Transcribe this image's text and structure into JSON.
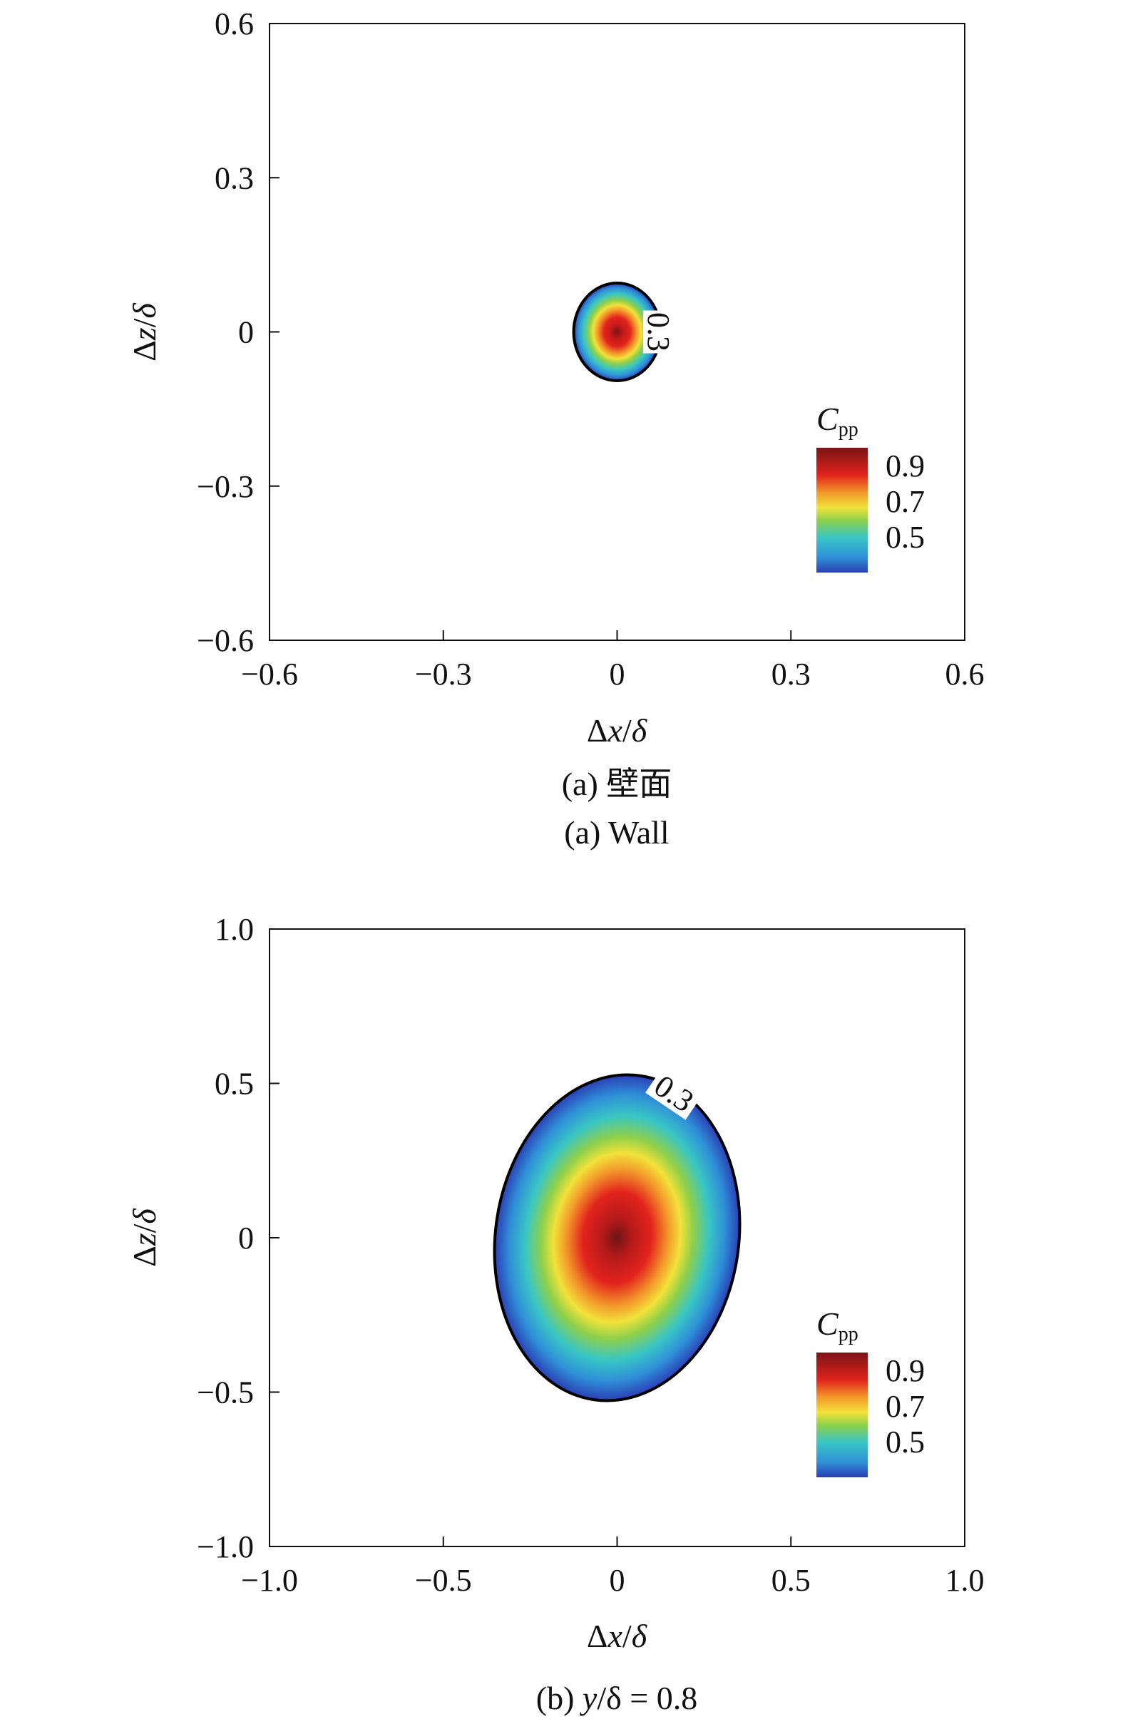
{
  "chart_data": [
    {
      "type": "heatmap",
      "panel": "a",
      "caption_cn": "(a) 壁面",
      "caption_en": "(a) Wall",
      "xlabel": "Δx/δ",
      "ylabel": "Δz/δ",
      "xlim": [
        -0.6,
        0.6
      ],
      "ylim": [
        -0.6,
        0.6
      ],
      "xticks": [
        "−0.6",
        "−0.3",
        "0",
        "0.3",
        "0.6"
      ],
      "xtick_values": [
        -0.6,
        -0.3,
        0,
        0.3,
        0.6
      ],
      "yticks": [
        "0.6",
        "0.3",
        "0",
        "−0.3",
        "−0.6"
      ],
      "ytick_values": [
        0.6,
        0.3,
        0,
        -0.3,
        -0.6
      ],
      "peak": {
        "x": 0,
        "z": 0,
        "value": 1.0
      },
      "contour": {
        "level": 0.3,
        "label": "0.3",
        "semi_axis_x": 0.075,
        "semi_axis_z": 0.095
      },
      "colorbar": {
        "title": "C",
        "subscript": "pp",
        "ticks": [
          "0.9",
          "0.7",
          "0.5"
        ],
        "tick_values": [
          0.9,
          0.7,
          0.5
        ],
        "range": [
          0.3,
          1.0
        ]
      }
    },
    {
      "type": "heatmap",
      "panel": "b",
      "caption_prefix": "(b) ",
      "caption_var": "y",
      "caption_rest": "/δ = 0.8",
      "xlabel": "Δx/δ",
      "ylabel": "Δz/δ",
      "xlim": [
        -1.0,
        1.0
      ],
      "ylim": [
        -1.0,
        1.0
      ],
      "xticks": [
        "−1.0",
        "−0.5",
        "0",
        "0.5",
        "1.0"
      ],
      "xtick_values": [
        -1.0,
        -0.5,
        0,
        0.5,
        1.0
      ],
      "yticks": [
        "1.0",
        "0.5",
        "0",
        "−0.5",
        "−1.0"
      ],
      "ytick_values": [
        1.0,
        0.5,
        0,
        -0.5,
        -1.0
      ],
      "peak": {
        "x": 0,
        "z": 0,
        "value": 1.0
      },
      "contour": {
        "level": 0.3,
        "label": "0.3",
        "semi_axis_x": 0.35,
        "semi_axis_z": 0.53,
        "tilt_deg": 8
      },
      "colorbar": {
        "title": "C",
        "subscript": "pp",
        "ticks": [
          "0.9",
          "0.7",
          "0.5"
        ],
        "tick_values": [
          0.9,
          0.7,
          0.5
        ],
        "range": [
          0.3,
          1.0
        ]
      }
    }
  ],
  "colors": {
    "jet": [
      "#2a3fb5",
      "#2f8fd8",
      "#39c6c4",
      "#8fd04a",
      "#f2e23a",
      "#f39a2a",
      "#e2231d",
      "#7a1416"
    ],
    "contour": "#000000"
  }
}
